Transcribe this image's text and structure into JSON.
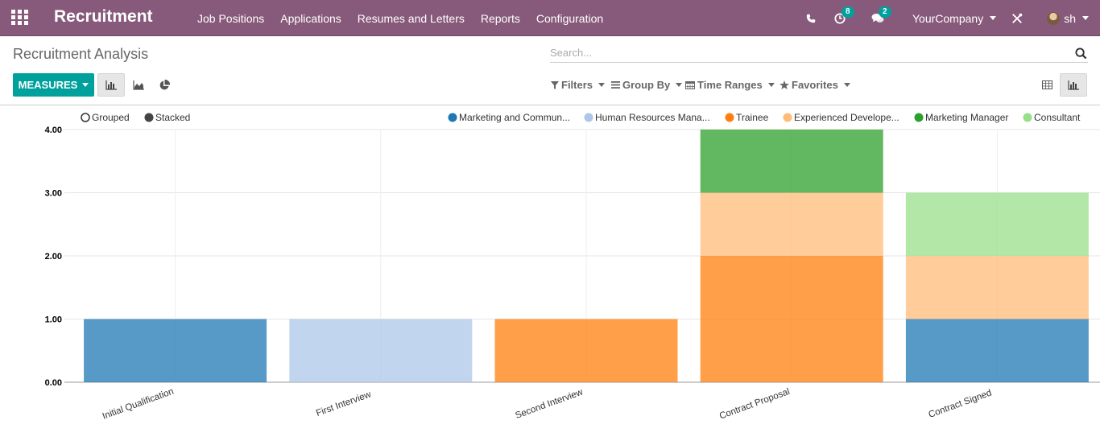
{
  "navbar": {
    "app_title": "Recruitment",
    "menu": [
      "Job Positions",
      "Applications",
      "Resumes and Letters",
      "Reports",
      "Configuration"
    ],
    "activity_count": "8",
    "message_count": "2",
    "company": "YourCompany",
    "user": "sh"
  },
  "control_panel": {
    "breadcrumb": "Recruitment Analysis",
    "search_placeholder": "Search...",
    "measures_label": "MEASURES",
    "filters": [
      "Filters",
      "Group By",
      "Time Ranges",
      "Favorites"
    ]
  },
  "chart_legend": {
    "grouped_label": "Grouped",
    "stacked_label": "Stacked",
    "series": [
      {
        "label": "Marketing and Commun...",
        "color": "#1f77b4"
      },
      {
        "label": "Human Resources Mana...",
        "color": "#aec7e8"
      },
      {
        "label": "Trainee",
        "color": "#ff7f0e"
      },
      {
        "label": "Experienced Develope...",
        "color": "#ffbb78"
      },
      {
        "label": "Marketing Manager",
        "color": "#2ca02c"
      },
      {
        "label": "Consultant",
        "color": "#98df8a"
      }
    ]
  },
  "chart_data": {
    "type": "bar",
    "stacked": true,
    "categories": [
      "Initial Qualification",
      "First Interview",
      "Second Interview",
      "Contract Proposal",
      "Contract Signed"
    ],
    "series": [
      {
        "name": "Marketing and Commun...",
        "values": [
          1,
          0,
          0,
          0,
          1
        ],
        "color": "#1f77b4"
      },
      {
        "name": "Human Resources Mana...",
        "values": [
          0,
          1,
          0,
          0,
          0
        ],
        "color": "#aec7e8"
      },
      {
        "name": "Trainee",
        "values": [
          0,
          0,
          1,
          2,
          0
        ],
        "color": "#ff7f0e"
      },
      {
        "name": "Experienced Develope...",
        "values": [
          0,
          0,
          0,
          1,
          1
        ],
        "color": "#ffbb78"
      },
      {
        "name": "Marketing Manager",
        "values": [
          0,
          0,
          0,
          1,
          0
        ],
        "color": "#2ca02c"
      },
      {
        "name": "Consultant",
        "values": [
          0,
          0,
          0,
          0,
          1
        ],
        "color": "#98df8a"
      }
    ],
    "y_ticks": [
      "0.00",
      "1.00",
      "2.00",
      "3.00",
      "4.00"
    ],
    "ylim": [
      0,
      4
    ],
    "grid": true
  }
}
